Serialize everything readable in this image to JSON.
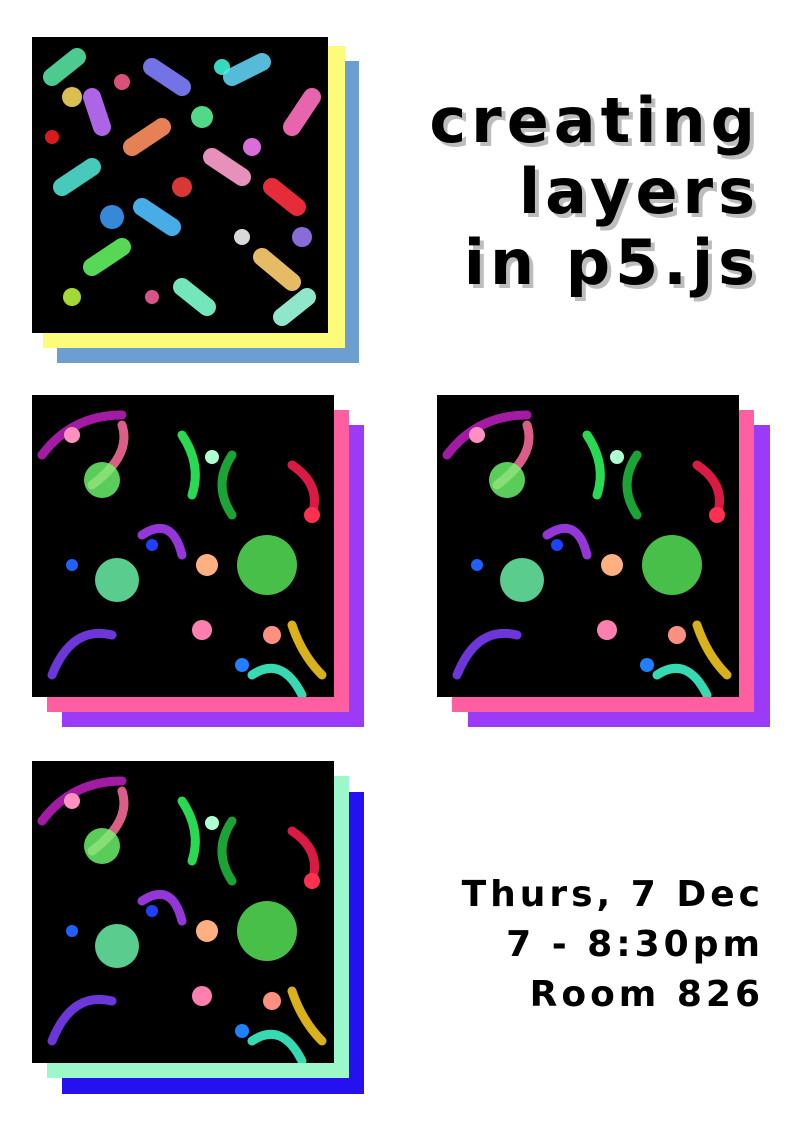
{
  "title_lines": [
    "creating",
    "layers",
    "in p5.js"
  ],
  "event": {
    "date": "Thurs, 7 Dec",
    "time": "7 - 8:30pm",
    "room": "Room 826"
  },
  "colors": {
    "panel1_back": "#6d9ed1",
    "panel1_front": "#fdfb7a",
    "panel2_back": "#9b3bf5",
    "panel2_front": "#ff5fa1",
    "panel3_back": "#9b3bf5",
    "panel3_front": "#ff5fa1",
    "panel4_back": "#2510f0",
    "panel4_front": "#9cf7cb"
  }
}
